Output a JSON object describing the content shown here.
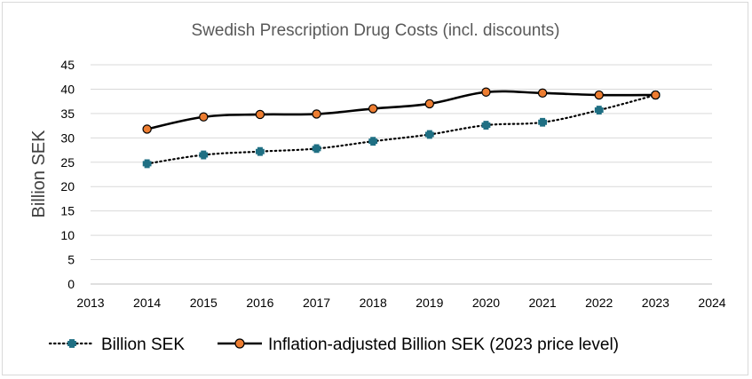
{
  "chart_data": {
    "type": "line",
    "title": "Swedish Prescription Drug Costs (incl. discounts)",
    "xlabel": "",
    "ylabel": "Billion SEK",
    "x": [
      2014,
      2015,
      2016,
      2017,
      2018,
      2019,
      2020,
      2021,
      2022,
      2023
    ],
    "x_ticks": [
      "2013",
      "2014",
      "2015",
      "2016",
      "2017",
      "2018",
      "2019",
      "2020",
      "2021",
      "2022",
      "2023",
      "2024"
    ],
    "y_ticks": [
      "0",
      "5",
      "10",
      "15",
      "20",
      "25",
      "30",
      "35",
      "40",
      "45"
    ],
    "xlim": [
      2013,
      2024
    ],
    "ylim": [
      0,
      45
    ],
    "grid": true,
    "legend_position": "bottom",
    "series": [
      {
        "name": "Billion SEK",
        "values": [
          24.7,
          26.5,
          27.2,
          27.8,
          29.3,
          30.7,
          32.6,
          33.2,
          35.7,
          38.8
        ],
        "color": "#1f6f83",
        "style": "dotted",
        "marker": "plus"
      },
      {
        "name": "Inflation-adjusted Billion SEK (2023 price level)",
        "values": [
          31.8,
          34.3,
          34.8,
          34.9,
          36.0,
          37.0,
          39.4,
          39.2,
          38.8,
          38.8
        ],
        "color": "#000000",
        "marker_color": "#ed7d31",
        "style": "solid",
        "marker": "circle"
      }
    ]
  }
}
